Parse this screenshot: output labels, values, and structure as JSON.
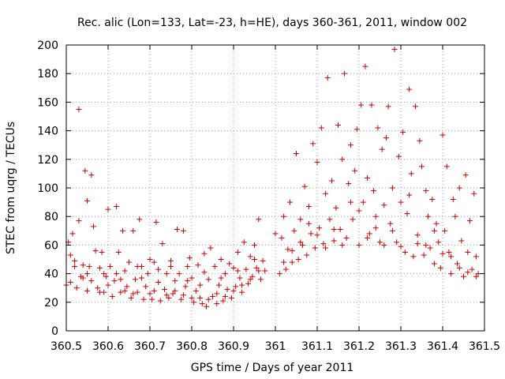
{
  "chart_data": {
    "type": "scatter",
    "title": "Rec. alic (Lon=133, Lat=-23, h=HE), days 360-361, 2011, window 002",
    "xlabel": "GPS time / Days of year 2011",
    "ylabel": "STEC from uqrg / TECUs",
    "xlim": [
      360.5,
      361.5
    ],
    "ylim": [
      0,
      200
    ],
    "xticks": [
      360.5,
      360.6,
      360.7,
      360.8,
      360.9,
      361,
      361.1,
      361.2,
      361.3,
      361.4,
      361.5
    ],
    "xtick_labels": [
      "360.5",
      "360.6",
      "360.7",
      "360.8",
      "360.9",
      "361",
      "361.1",
      "361.2",
      "361.3",
      "361.4",
      "361.5"
    ],
    "yticks": [
      0,
      20,
      40,
      60,
      80,
      100,
      120,
      140,
      160,
      180,
      200
    ],
    "ytick_labels": [
      "0",
      "20",
      "40",
      "60",
      "80",
      "100",
      "120",
      "140",
      "160",
      "180",
      "200"
    ],
    "grid": true,
    "marker": "+",
    "marker_color": "#cc0000",
    "points": [
      [
        360.5,
        32
      ],
      [
        360.505,
        62
      ],
      [
        360.51,
        34
      ],
      [
        360.515,
        68
      ],
      [
        360.52,
        45
      ],
      [
        360.525,
        30
      ],
      [
        360.53,
        155
      ],
      [
        360.53,
        77
      ],
      [
        360.535,
        38
      ],
      [
        360.54,
        46
      ],
      [
        360.545,
        112
      ],
      [
        360.55,
        91
      ],
      [
        360.55,
        28
      ],
      [
        360.555,
        45
      ],
      [
        360.56,
        109
      ],
      [
        360.565,
        73
      ],
      [
        360.57,
        56
      ],
      [
        360.575,
        30
      ],
      [
        360.58,
        44
      ],
      [
        360.585,
        55
      ],
      [
        360.59,
        27
      ],
      [
        360.595,
        38
      ],
      [
        360.6,
        85
      ],
      [
        360.6,
        32
      ],
      [
        360.605,
        45
      ],
      [
        360.61,
        24
      ],
      [
        360.615,
        35
      ],
      [
        360.62,
        87
      ],
      [
        360.625,
        55
      ],
      [
        360.63,
        27
      ],
      [
        360.635,
        70
      ],
      [
        360.64,
        42
      ],
      [
        360.645,
        31
      ],
      [
        360.65,
        48
      ],
      [
        360.655,
        23
      ],
      [
        360.66,
        70
      ],
      [
        360.665,
        36
      ],
      [
        360.67,
        27
      ],
      [
        360.675,
        78
      ],
      [
        360.68,
        45
      ],
      [
        360.685,
        22
      ],
      [
        360.69,
        31
      ],
      [
        360.695,
        40
      ],
      [
        360.7,
        50
      ],
      [
        360.705,
        22
      ],
      [
        360.71,
        28
      ],
      [
        360.715,
        76
      ],
      [
        360.72,
        43
      ],
      [
        360.725,
        21
      ],
      [
        360.73,
        61
      ],
      [
        360.735,
        29
      ],
      [
        360.74,
        40
      ],
      [
        360.745,
        23
      ],
      [
        360.75,
        49
      ],
      [
        360.755,
        26
      ],
      [
        360.76,
        35
      ],
      [
        360.765,
        71
      ],
      [
        360.77,
        40
      ],
      [
        360.775,
        22
      ],
      [
        360.78,
        70
      ],
      [
        360.785,
        31
      ],
      [
        360.79,
        45
      ],
      [
        360.795,
        51
      ],
      [
        360.8,
        37
      ],
      [
        360.805,
        20
      ],
      [
        360.81,
        28
      ],
      [
        360.815,
        46
      ],
      [
        360.82,
        32
      ],
      [
        360.825,
        19
      ],
      [
        360.83,
        54
      ],
      [
        360.835,
        17
      ],
      [
        360.84,
        36
      ],
      [
        360.845,
        58
      ],
      [
        360.85,
        24
      ],
      [
        360.855,
        45
      ],
      [
        360.86,
        19
      ],
      [
        360.865,
        32
      ],
      [
        360.87,
        50
      ],
      [
        360.875,
        21
      ],
      [
        360.88,
        40
      ],
      [
        360.885,
        29
      ],
      [
        360.89,
        47
      ],
      [
        360.895,
        23
      ],
      [
        360.9,
        44
      ],
      [
        360.905,
        31
      ],
      [
        360.91,
        55
      ],
      [
        360.915,
        37
      ],
      [
        360.92,
        27
      ],
      [
        360.925,
        62
      ],
      [
        360.93,
        43
      ],
      [
        360.935,
        33
      ],
      [
        360.94,
        52
      ],
      [
        360.945,
        38
      ],
      [
        360.95,
        60
      ],
      [
        360.955,
        44
      ],
      [
        360.96,
        78
      ],
      [
        360.965,
        36
      ],
      [
        360.97,
        49
      ],
      [
        360.975,
        42
      ],
      [
        360.52,
        49
      ],
      [
        360.54,
        37
      ],
      [
        360.56,
        35
      ],
      [
        360.58,
        27
      ],
      [
        360.62,
        40
      ],
      [
        360.64,
        28
      ],
      [
        360.66,
        26
      ],
      [
        360.68,
        37
      ],
      [
        360.7,
        26
      ],
      [
        360.72,
        34
      ],
      [
        360.74,
        25
      ],
      [
        360.76,
        28
      ],
      [
        360.78,
        25
      ],
      [
        360.8,
        23
      ],
      [
        360.82,
        23
      ],
      [
        360.84,
        22
      ],
      [
        360.86,
        26
      ],
      [
        360.88,
        24
      ],
      [
        360.9,
        28
      ],
      [
        360.92,
        32
      ],
      [
        360.94,
        36
      ],
      [
        360.96,
        42
      ],
      [
        360.51,
        53
      ],
      [
        360.55,
        40
      ],
      [
        360.59,
        40
      ],
      [
        360.63,
        36
      ],
      [
        360.67,
        45
      ],
      [
        360.71,
        48
      ],
      [
        360.75,
        45
      ],
      [
        360.79,
        35
      ],
      [
        360.83,
        41
      ],
      [
        360.87,
        37
      ],
      [
        360.91,
        42
      ],
      [
        360.95,
        50
      ],
      [
        361.0,
        68
      ],
      [
        361.01,
        40
      ],
      [
        361.015,
        65
      ],
      [
        361.02,
        80
      ],
      [
        361.025,
        43
      ],
      [
        361.03,
        57
      ],
      [
        361.035,
        90
      ],
      [
        361.04,
        48
      ],
      [
        361.045,
        70
      ],
      [
        361.05,
        124
      ],
      [
        361.055,
        50
      ],
      [
        361.06,
        78
      ],
      [
        361.065,
        60
      ],
      [
        361.07,
        101
      ],
      [
        361.075,
        53
      ],
      [
        361.08,
        87
      ],
      [
        361.085,
        68
      ],
      [
        361.09,
        131
      ],
      [
        361.095,
        58
      ],
      [
        361.1,
        118
      ],
      [
        361.105,
        72
      ],
      [
        361.11,
        142
      ],
      [
        361.115,
        61
      ],
      [
        361.12,
        96
      ],
      [
        361.125,
        177
      ],
      [
        361.13,
        78
      ],
      [
        361.135,
        105
      ],
      [
        361.14,
        63
      ],
      [
        361.145,
        86
      ],
      [
        361.15,
        144
      ],
      [
        361.155,
        71
      ],
      [
        361.16,
        120
      ],
      [
        361.165,
        180
      ],
      [
        361.17,
        65
      ],
      [
        361.175,
        103
      ],
      [
        361.18,
        130
      ],
      [
        361.185,
        78
      ],
      [
        361.19,
        112
      ],
      [
        361.195,
        141
      ],
      [
        361.2,
        60
      ],
      [
        361.205,
        158
      ],
      [
        361.21,
        90
      ],
      [
        361.215,
        185
      ],
      [
        361.22,
        107
      ],
      [
        361.225,
        68
      ],
      [
        361.23,
        158
      ],
      [
        361.235,
        98
      ],
      [
        361.24,
        80
      ],
      [
        361.245,
        142
      ],
      [
        361.25,
        62
      ],
      [
        361.255,
        127
      ],
      [
        361.26,
        88
      ],
      [
        361.265,
        135
      ],
      [
        361.27,
        157
      ],
      [
        361.275,
        75
      ],
      [
        361.28,
        100
      ],
      [
        361.285,
        197
      ],
      [
        361.29,
        62
      ],
      [
        361.295,
        122
      ],
      [
        361.3,
        90
      ],
      [
        361.305,
        139
      ],
      [
        361.31,
        55
      ],
      [
        361.315,
        82
      ],
      [
        361.32,
        169
      ],
      [
        361.325,
        110
      ],
      [
        361.33,
        52
      ],
      [
        361.335,
        157
      ],
      [
        361.34,
        67
      ],
      [
        361.345,
        133
      ],
      [
        361.35,
        115
      ],
      [
        361.355,
        53
      ],
      [
        361.36,
        98
      ],
      [
        361.365,
        80
      ],
      [
        361.37,
        58
      ],
      [
        361.375,
        92
      ],
      [
        361.38,
        47
      ],
      [
        361.385,
        75
      ],
      [
        361.39,
        62
      ],
      [
        361.395,
        44
      ],
      [
        361.4,
        137
      ],
      [
        361.405,
        70
      ],
      [
        361.41,
        115
      ],
      [
        361.415,
        55
      ],
      [
        361.42,
        40
      ],
      [
        361.425,
        92
      ],
      [
        361.43,
        80
      ],
      [
        361.435,
        47
      ],
      [
        361.44,
        100
      ],
      [
        361.445,
        63
      ],
      [
        361.45,
        38
      ],
      [
        361.455,
        109
      ],
      [
        361.46,
        55
      ],
      [
        361.465,
        77
      ],
      [
        361.47,
        43
      ],
      [
        361.475,
        96
      ],
      [
        361.48,
        52
      ],
      [
        361.485,
        40
      ],
      [
        361.02,
        48
      ],
      [
        361.04,
        56
      ],
      [
        361.06,
        62
      ],
      [
        361.08,
        75
      ],
      [
        361.1,
        67
      ],
      [
        361.12,
        58
      ],
      [
        361.14,
        71
      ],
      [
        361.16,
        60
      ],
      [
        361.18,
        90
      ],
      [
        361.2,
        84
      ],
      [
        361.22,
        65
      ],
      [
        361.24,
        72
      ],
      [
        361.26,
        60
      ],
      [
        361.28,
        70
      ],
      [
        361.3,
        59
      ],
      [
        361.32,
        95
      ],
      [
        361.34,
        61
      ],
      [
        361.36,
        60
      ],
      [
        361.38,
        70
      ],
      [
        361.4,
        54
      ],
      [
        361.42,
        52
      ],
      [
        361.44,
        44
      ],
      [
        361.46,
        41
      ],
      [
        361.48,
        38
      ]
    ]
  }
}
